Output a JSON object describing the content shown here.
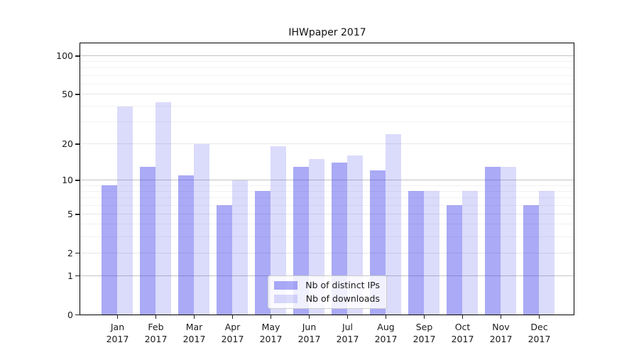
{
  "figure": {
    "title": "IHWpaper 2017"
  },
  "chart_data": {
    "type": "bar",
    "title": "IHWpaper 2017",
    "categories": [
      "Jan 2017",
      "Feb 2017",
      "Mar 2017",
      "Apr 2017",
      "May 2017",
      "Jun 2017",
      "Jul 2017",
      "Aug 2017",
      "Sep 2017",
      "Oct 2017",
      "Nov 2017",
      "Dec 2017"
    ],
    "x_tick_month": [
      "Jan",
      "Feb",
      "Mar",
      "Apr",
      "May",
      "Jun",
      "Jul",
      "Aug",
      "Sep",
      "Oct",
      "Nov",
      "Dec"
    ],
    "x_tick_year": "2017",
    "series": [
      {
        "name": "Nb of distinct IPs",
        "color": "rgba(62,62,235,0.44)",
        "values": [
          9,
          13,
          11,
          6,
          8,
          13,
          14,
          12,
          8,
          6,
          13,
          6
        ]
      },
      {
        "name": "Nb of downloads",
        "color": "rgba(62,62,235,0.19)",
        "values": [
          40,
          43,
          20,
          10,
          19,
          15,
          16,
          24,
          8,
          8,
          13,
          8
        ]
      }
    ],
    "yscale": "log10(1+v)",
    "ylim": [
      0,
      125
    ],
    "yticks_labeled": [
      100,
      50,
      20,
      10,
      5,
      2,
      1,
      0
    ],
    "gridlines_major": [
      1,
      10,
      100
    ],
    "gridlines_minor": [
      2,
      5,
      20,
      50
    ],
    "gridlines_sub": [
      3,
      4,
      6,
      7,
      8,
      9,
      30,
      40,
      60,
      70,
      80,
      90
    ],
    "grid": true,
    "legend_position": "lower center"
  },
  "colors": {
    "grid_major": "#c3c3c3",
    "grid_minor": "#e7e7e7",
    "grid_sub": "#f2f2f2",
    "spine": "#000000",
    "text": "#1a1a1a"
  }
}
